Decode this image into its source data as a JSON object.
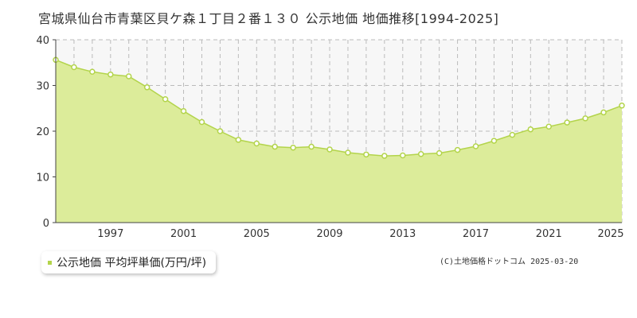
{
  "chart_data": {
    "type": "area",
    "title": "宮城県仙台市青葉区貝ケ森１丁目２番１３０ 公示地価 地価推移[1994-2025]",
    "xlabel": "",
    "ylabel": "",
    "ylim": [
      0,
      40
    ],
    "xlim": [
      1994,
      2025
    ],
    "yticks": [
      "0",
      "10",
      "20",
      "30",
      "40"
    ],
    "xticks": [
      "1997",
      "2001",
      "2005",
      "2009",
      "2013",
      "2017",
      "2021",
      "2025"
    ],
    "grid": true,
    "legend_position": "bottom-left",
    "series": [
      {
        "name": "公示地価 平均坪単価(万円/坪)",
        "color": "#b3d44b",
        "fill": "#dcec9a",
        "x": [
          1994,
          1995,
          1996,
          1997,
          1998,
          1999,
          2000,
          2001,
          2002,
          2003,
          2004,
          2005,
          2006,
          2007,
          2008,
          2009,
          2010,
          2011,
          2012,
          2013,
          2014,
          2015,
          2016,
          2017,
          2018,
          2019,
          2020,
          2021,
          2022,
          2023,
          2024,
          2025
        ],
        "values": [
          35.6,
          34.0,
          33.0,
          32.4,
          32.0,
          29.6,
          27.0,
          24.4,
          22.0,
          20.0,
          18.1,
          17.3,
          16.6,
          16.4,
          16.6,
          16.0,
          15.3,
          14.9,
          14.6,
          14.7,
          15.0,
          15.2,
          15.9,
          16.7,
          17.9,
          19.2,
          20.4,
          21.0,
          21.9,
          22.8,
          24.1,
          25.6
        ]
      }
    ]
  },
  "legend": {
    "label": "公示地価 平均坪単価(万円/坪)"
  },
  "credit": "(C)土地価格ドットコム 2025-03-20"
}
